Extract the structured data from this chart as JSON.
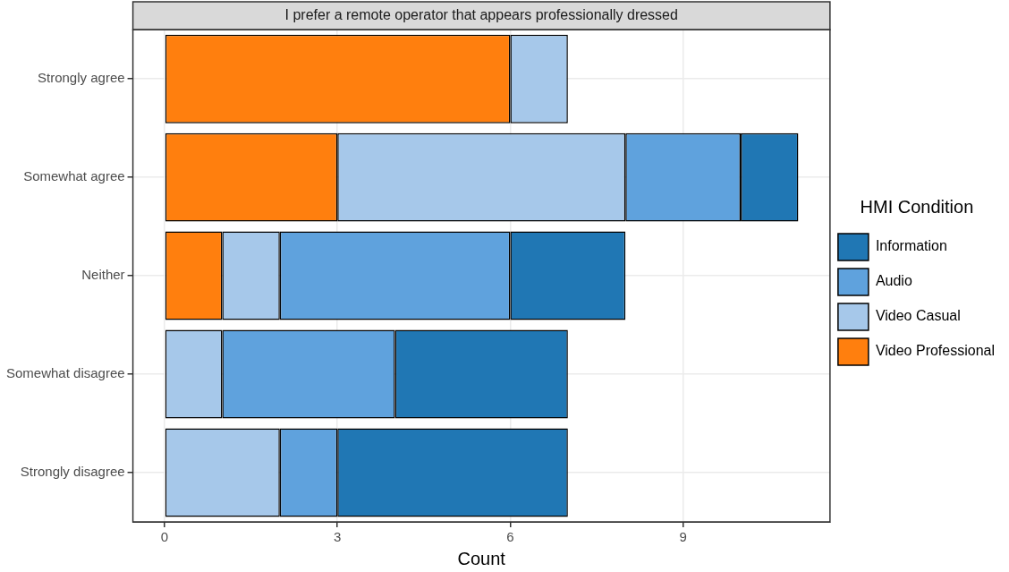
{
  "chart_data": {
    "type": "bar",
    "orientation": "horizontal",
    "stacked": true,
    "title": "I prefer a remote operator that appears professionally dressed",
    "xlabel": "Count",
    "legend_title": "HMI Condition",
    "categories": [
      "Strongly agree",
      "Somewhat agree",
      "Neither",
      "Somewhat disagree",
      "Strongly disagree"
    ],
    "series": [
      {
        "name": "Video Professional",
        "color": "#ff7f0e",
        "values": [
          6,
          3,
          1,
          0,
          0
        ]
      },
      {
        "name": "Video Casual",
        "color": "#a6c8ea",
        "values": [
          1,
          5,
          1,
          1,
          2
        ]
      },
      {
        "name": "Audio",
        "color": "#5fa2dd",
        "values": [
          0,
          2,
          4,
          3,
          1
        ]
      },
      {
        "name": "Information",
        "color": "#2077b4",
        "values": [
          0,
          1,
          2,
          3,
          4
        ]
      }
    ],
    "xlim": [
      -0.55,
      11.55
    ],
    "xticks": [
      0,
      3,
      6,
      9
    ],
    "grid": true,
    "legend": "right"
  }
}
